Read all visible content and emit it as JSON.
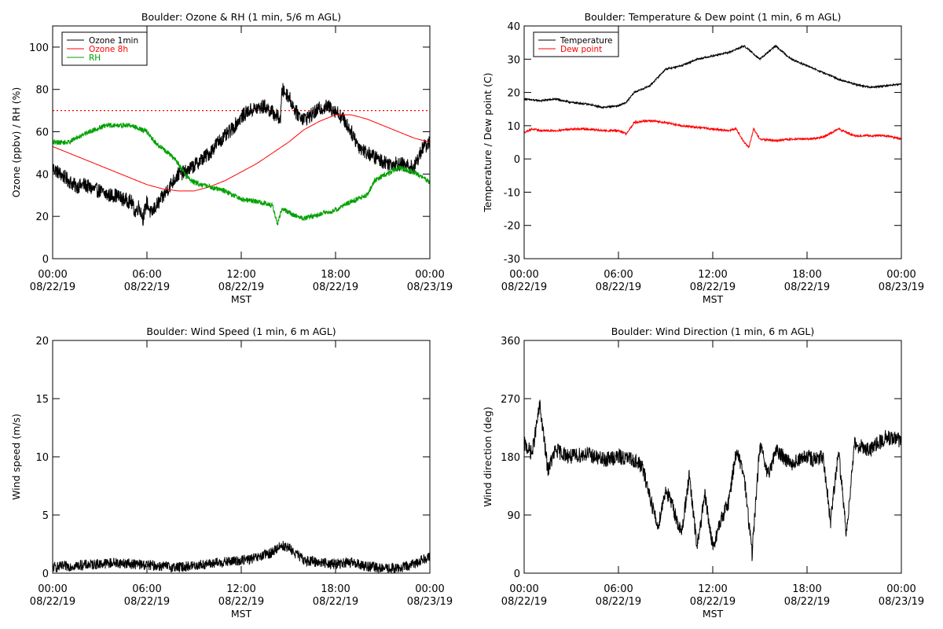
{
  "chart_data": [
    {
      "type": "line",
      "title": "Boulder: Ozone & RH (1 min, 5/6 m AGL)",
      "ylabel": "Ozone (ppbv) / RH (%)",
      "xlabel": "MST",
      "ylim": [
        0,
        110
      ],
      "yticks": [
        0,
        20,
        40,
        60,
        80,
        100
      ],
      "xlim": [
        0,
        24
      ],
      "xticks": [
        0,
        6,
        12,
        18,
        24
      ],
      "xtick_labels": [
        [
          "00:00",
          "08/22/19"
        ],
        [
          "06:00",
          "08/22/19"
        ],
        [
          "12:00",
          "08/22/19"
        ],
        [
          "18:00",
          "08/22/19"
        ],
        [
          "00:00",
          "08/23/19"
        ]
      ],
      "legend": "top-left",
      "reference_line": {
        "y": 70,
        "color": "#ff0000",
        "style": "dotted"
      },
      "series": [
        {
          "name": "Ozone 1min",
          "color": "#000000",
          "noise": 3.5,
          "x": [
            0,
            0.5,
            1,
            1.5,
            2,
            2.5,
            3,
            3.5,
            4,
            4.5,
            5,
            5.25,
            5.5,
            5.75,
            6,
            6.25,
            6.5,
            7,
            7.5,
            8,
            8.5,
            9,
            9.5,
            10,
            10.5,
            11,
            11.5,
            12,
            12.5,
            13,
            13.5,
            14,
            14.5,
            14.6,
            15,
            15.5,
            16,
            16.5,
            17,
            17.5,
            18,
            18.5,
            19,
            19.5,
            20,
            20.5,
            21,
            21.5,
            22,
            22.5,
            23,
            23.5,
            24
          ],
          "y": [
            43,
            40,
            37,
            34,
            35,
            33,
            32,
            30,
            30,
            28,
            27,
            22,
            25,
            19,
            27,
            21,
            24,
            29,
            35,
            40,
            41,
            44,
            47,
            50,
            55,
            58,
            62,
            67,
            70,
            71,
            72,
            69,
            66,
            80,
            77,
            69,
            66,
            68,
            71,
            72,
            70,
            66,
            60,
            53,
            50,
            48,
            46,
            45,
            45,
            44,
            43,
            52,
            55
          ]
        },
        {
          "name": "Ozone 8h",
          "color": "#ff0000",
          "noise": 0,
          "x": [
            0,
            1,
            2,
            3,
            4,
            5,
            6,
            7,
            8,
            9,
            10,
            11,
            12,
            13,
            14,
            15,
            16,
            17,
            18,
            19,
            20,
            21,
            22,
            23,
            24
          ],
          "y": [
            53,
            50,
            47,
            44,
            41,
            38,
            35,
            33,
            32,
            32,
            34,
            37,
            41,
            45,
            50,
            55,
            61,
            65,
            68,
            68,
            66,
            63,
            60,
            57,
            55
          ]
        },
        {
          "name": "RH",
          "color": "#00a000",
          "noise": 1.2,
          "x": [
            0,
            1,
            1.5,
            2,
            3,
            3.5,
            4,
            5,
            6,
            6.5,
            7,
            7.5,
            8,
            8.5,
            9,
            10,
            11,
            12,
            13,
            14,
            14.3,
            14.6,
            15,
            15.5,
            16,
            17,
            18,
            18.5,
            19,
            20,
            20.5,
            21,
            22,
            23,
            24
          ],
          "y": [
            55,
            55,
            57,
            59,
            62,
            63,
            63,
            63,
            60,
            55,
            52,
            49,
            45,
            39,
            36,
            34,
            32,
            28,
            27,
            25,
            16,
            24,
            22,
            20,
            19,
            21,
            23,
            25,
            27,
            30,
            37,
            39,
            43,
            41,
            36
          ]
        }
      ]
    },
    {
      "type": "line",
      "title": "Boulder: Temperature & Dew point (1 min, 6 m AGL)",
      "ylabel": "Temperature / Dew point (C)",
      "xlabel": "MST",
      "ylim": [
        -30,
        40
      ],
      "yticks": [
        -30,
        -20,
        -10,
        0,
        10,
        20,
        30,
        40
      ],
      "xlim": [
        0,
        24
      ],
      "xticks": [
        0,
        6,
        12,
        18,
        24
      ],
      "xtick_labels": [
        [
          "00:00",
          "08/22/19"
        ],
        [
          "06:00",
          "08/22/19"
        ],
        [
          "12:00",
          "08/22/19"
        ],
        [
          "18:00",
          "08/22/19"
        ],
        [
          "00:00",
          "08/23/19"
        ]
      ],
      "legend": "top-left",
      "series": [
        {
          "name": "Temperature",
          "color": "#000000",
          "noise": 0.25,
          "x": [
            0,
            1,
            2,
            3,
            4,
            5,
            6,
            6.5,
            7,
            8,
            9,
            10,
            11,
            12,
            13,
            14,
            14.5,
            15,
            15.5,
            16,
            16.5,
            17,
            18,
            19,
            20,
            21,
            22,
            23,
            24
          ],
          "y": [
            18,
            17.5,
            18,
            17,
            16.5,
            15.5,
            16,
            17,
            20,
            22,
            27,
            28,
            30,
            31,
            32,
            34,
            32,
            30,
            32,
            34,
            32,
            30,
            28,
            26,
            24,
            22.5,
            21.5,
            22,
            22.5
          ]
        },
        {
          "name": "Dew point",
          "color": "#ff0000",
          "noise": 0.3,
          "x": [
            0,
            0.5,
            1,
            2,
            3,
            4,
            5,
            6,
            6.5,
            7,
            8,
            9,
            10,
            11,
            12,
            13,
            13.5,
            14,
            14.3,
            14.6,
            15,
            16,
            17,
            18,
            19,
            20,
            21,
            22,
            23,
            24
          ],
          "y": [
            8,
            9,
            8.5,
            8.5,
            9,
            9,
            8.5,
            8.5,
            7.5,
            11,
            11.5,
            11,
            10,
            9.5,
            9,
            8.5,
            9,
            5,
            3.5,
            9,
            6,
            5.5,
            6,
            6,
            6.5,
            9,
            7,
            7,
            7,
            6
          ]
        }
      ]
    },
    {
      "type": "line",
      "title": "Boulder: Wind Speed (1 min, 6 m AGL)",
      "ylabel": "Wind speed (m/s)",
      "xlabel": "MST",
      "ylim": [
        0,
        20
      ],
      "yticks": [
        0,
        5,
        10,
        15,
        20
      ],
      "xlim": [
        0,
        24
      ],
      "xticks": [
        0,
        6,
        12,
        18,
        24
      ],
      "xtick_labels": [
        [
          "00:00",
          "08/22/19"
        ],
        [
          "06:00",
          "08/22/19"
        ],
        [
          "12:00",
          "08/22/19"
        ],
        [
          "18:00",
          "08/22/19"
        ],
        [
          "00:00",
          "08/23/19"
        ]
      ],
      "series": [
        {
          "color": "#000000",
          "noise": 0.45,
          "x": [
            0,
            2,
            4,
            6,
            8,
            10,
            12,
            13,
            14,
            14.5,
            15,
            16,
            18,
            19,
            20,
            21,
            22,
            23,
            24
          ],
          "y": [
            0.5,
            0.7,
            0.9,
            0.7,
            0.5,
            0.8,
            1.1,
            1.3,
            1.8,
            2.4,
            2.2,
            1.1,
            0.8,
            0.9,
            0.6,
            0.4,
            0.4,
            0.8,
            1.5
          ]
        }
      ]
    },
    {
      "type": "line",
      "title": "Boulder: Wind Direction (1 min, 6 m AGL)",
      "ylabel": "Wind direction (deg)",
      "xlabel": "MST",
      "ylim": [
        0,
        360
      ],
      "yticks": [
        0,
        90,
        180,
        270,
        360
      ],
      "xlim": [
        0,
        24
      ],
      "xticks": [
        0,
        6,
        12,
        18,
        24
      ],
      "xtick_labels": [
        [
          "00:00",
          "08/22/19"
        ],
        [
          "06:00",
          "08/22/19"
        ],
        [
          "12:00",
          "08/22/19"
        ],
        [
          "18:00",
          "08/22/19"
        ],
        [
          "00:00",
          "08/23/19"
        ]
      ],
      "series": [
        {
          "color": "#000000",
          "noise": 12,
          "x": [
            0,
            0.5,
            1,
            1.5,
            2,
            3,
            4,
            5,
            6,
            7,
            7.5,
            8,
            8.5,
            9,
            9.5,
            10,
            10.5,
            11,
            11.5,
            12,
            12.5,
            13,
            13.5,
            14,
            14.5,
            15,
            15.5,
            16,
            17,
            18,
            18.5,
            19,
            19.5,
            20,
            20.5,
            21,
            22,
            23,
            24
          ],
          "y": [
            200,
            185,
            260,
            160,
            190,
            180,
            185,
            175,
            180,
            175,
            165,
            120,
            70,
            130,
            100,
            60,
            150,
            40,
            120,
            40,
            80,
            110,
            190,
            150,
            30,
            200,
            150,
            190,
            170,
            180,
            175,
            180,
            80,
            190,
            60,
            200,
            190,
            210,
            205
          ]
        }
      ]
    }
  ]
}
